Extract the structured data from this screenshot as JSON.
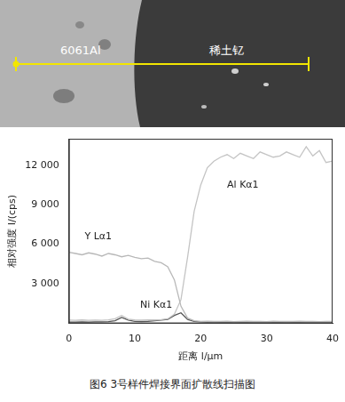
{
  "image": {
    "labels": [
      "6061Al",
      "稀土钇"
    ]
  },
  "chart_data": {
    "type": "line",
    "x": [
      0,
      1,
      2,
      3,
      4,
      5,
      6,
      7,
      8,
      9,
      10,
      11,
      12,
      13,
      14,
      15,
      16,
      17,
      18,
      19,
      20,
      21,
      22,
      23,
      24,
      25,
      26,
      27,
      28,
      29,
      30,
      31,
      32,
      33,
      34,
      35,
      36,
      37,
      38,
      39,
      40
    ],
    "series": [
      {
        "name": "Y Lα1",
        "color": "#b8b8b8",
        "values": [
          5400,
          5300,
          5200,
          5350,
          5250,
          5100,
          5300,
          5200,
          5050,
          5150,
          5000,
          4900,
          4950,
          4700,
          4600,
          4300,
          3300,
          1300,
          400,
          200,
          150,
          160,
          140,
          150,
          170,
          130,
          150,
          160,
          140,
          150,
          130,
          160,
          150,
          140,
          150,
          160,
          140,
          150,
          130,
          150,
          140
        ]
      },
      {
        "name": "Al Kα1",
        "color": "#c4c4c4",
        "values": [
          250,
          230,
          260,
          240,
          250,
          230,
          270,
          350,
          600,
          320,
          260,
          250,
          270,
          260,
          280,
          350,
          700,
          1800,
          5000,
          8500,
          10500,
          11800,
          12300,
          12600,
          12800,
          12500,
          12900,
          12700,
          12500,
          13000,
          12800,
          12600,
          12700,
          13000,
          12800,
          12600,
          13400,
          12700,
          13100,
          12200,
          12300
        ]
      },
      {
        "name": "Ni Kα1",
        "color": "#555555",
        "values": [
          100,
          100,
          110,
          100,
          120,
          110,
          130,
          200,
          450,
          250,
          150,
          140,
          160,
          200,
          250,
          300,
          600,
          800,
          300,
          150,
          110,
          100,
          100,
          100,
          100,
          100,
          100,
          100,
          100,
          100,
          100,
          100,
          100,
          100,
          100,
          100,
          100,
          100,
          100,
          100,
          100
        ]
      }
    ],
    "xlim": [
      0,
      40
    ],
    "xticks": [
      0,
      10,
      20,
      30,
      40
    ],
    "ylim": [
      0,
      14000
    ],
    "yticks": [
      {
        "value": 3000,
        "label": "3 000"
      },
      {
        "value": 6000,
        "label": "6 000"
      },
      {
        "value": 9000,
        "label": "9 000"
      },
      {
        "value": 12000,
        "label": "12 000"
      }
    ],
    "x_label": "距离 l/μm",
    "y_label": "相对强度 I/(cps)",
    "grid": false
  },
  "caption": "图6  3号样件焊接界面扩散线扫描图"
}
